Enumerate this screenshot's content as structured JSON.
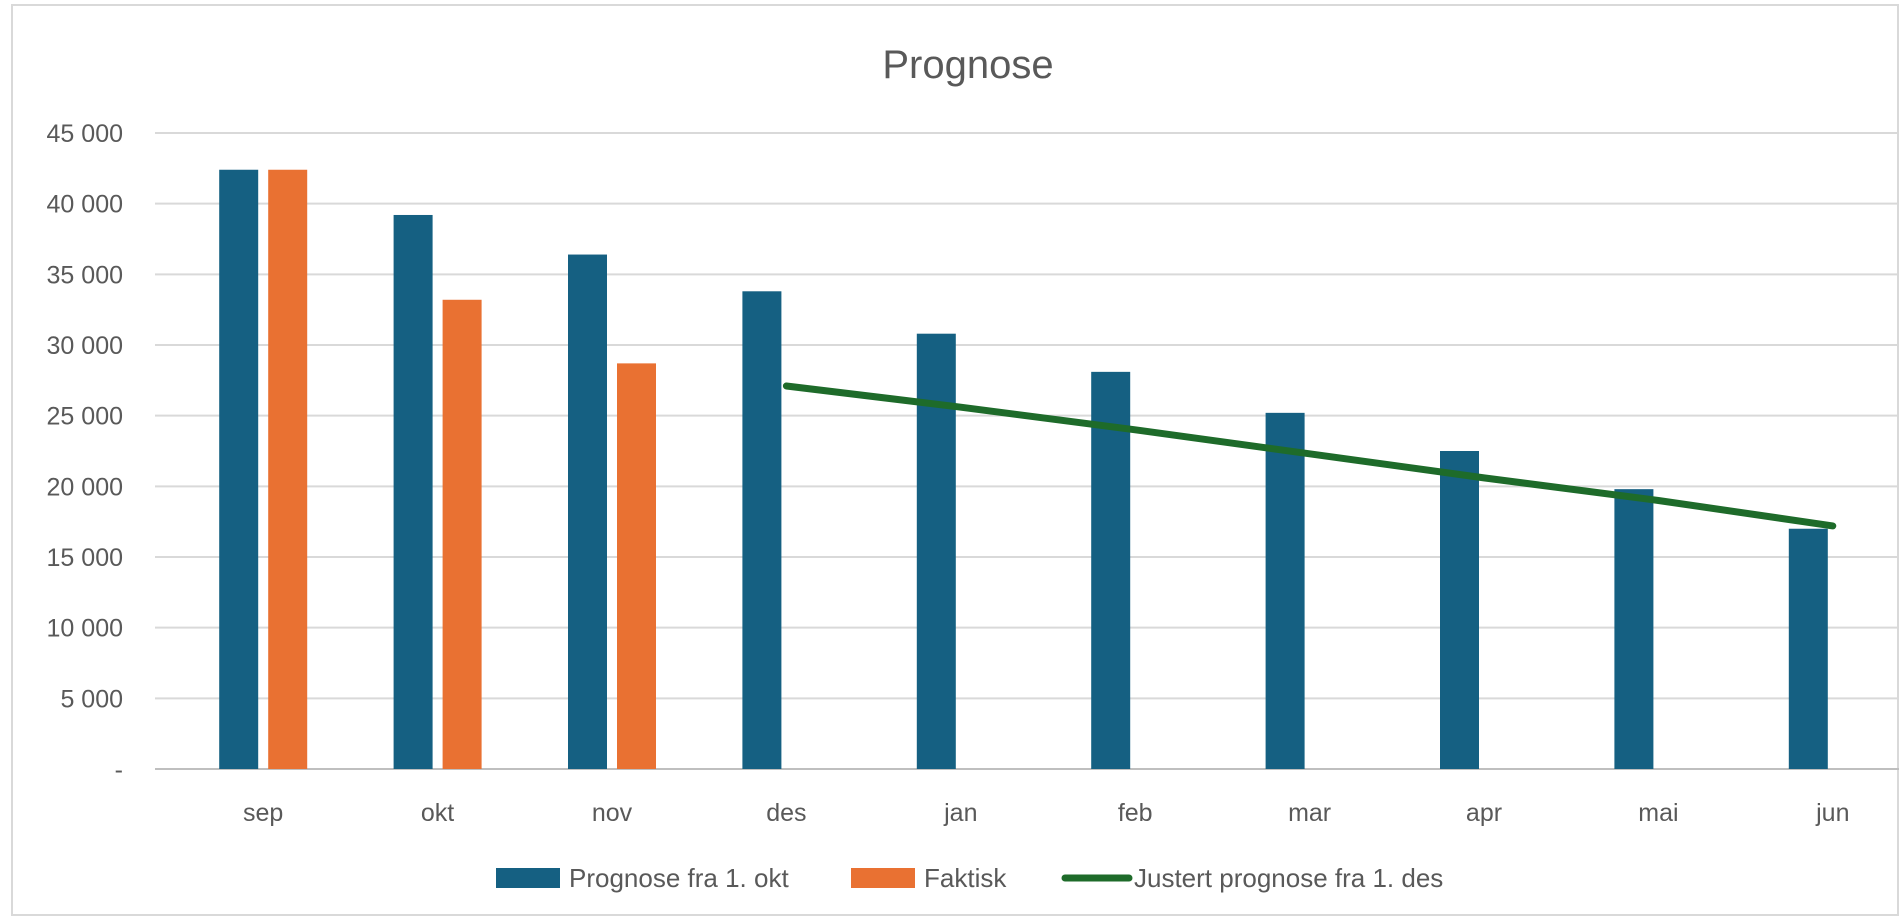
{
  "chart_data": {
    "type": "bar",
    "title": "Prognose",
    "xlabel": "",
    "ylabel": "",
    "categories": [
      "sep",
      "okt",
      "nov",
      "des",
      "jan",
      "feb",
      "mar",
      "apr",
      "mai",
      "jun"
    ],
    "ylim": [
      0,
      45000
    ],
    "yticks": [
      0,
      5000,
      10000,
      15000,
      20000,
      25000,
      30000,
      35000,
      40000,
      45000
    ],
    "ytick_labels": [
      "-",
      "5 000",
      "10 000",
      "15 000",
      "20 000",
      "25 000",
      "30 000",
      "35 000",
      "40 000",
      "45 000"
    ],
    "grid": true,
    "legend_position": "bottom",
    "series": [
      {
        "name": "Prognose fra 1. okt",
        "type": "bar",
        "color": "#156082",
        "values": [
          42400,
          39200,
          36400,
          33800,
          30800,
          28100,
          25200,
          22500,
          19800,
          17000
        ]
      },
      {
        "name": "Faktisk",
        "type": "bar",
        "color": "#E97132",
        "values": [
          42400,
          33200,
          28700,
          null,
          null,
          null,
          null,
          null,
          null,
          null
        ]
      },
      {
        "name": "Justert prognose fra 1. des",
        "type": "line",
        "color": "#1E6B2A",
        "values": [
          null,
          null,
          null,
          27100,
          25600,
          24000,
          22300,
          20600,
          19000,
          17200
        ]
      }
    ]
  }
}
